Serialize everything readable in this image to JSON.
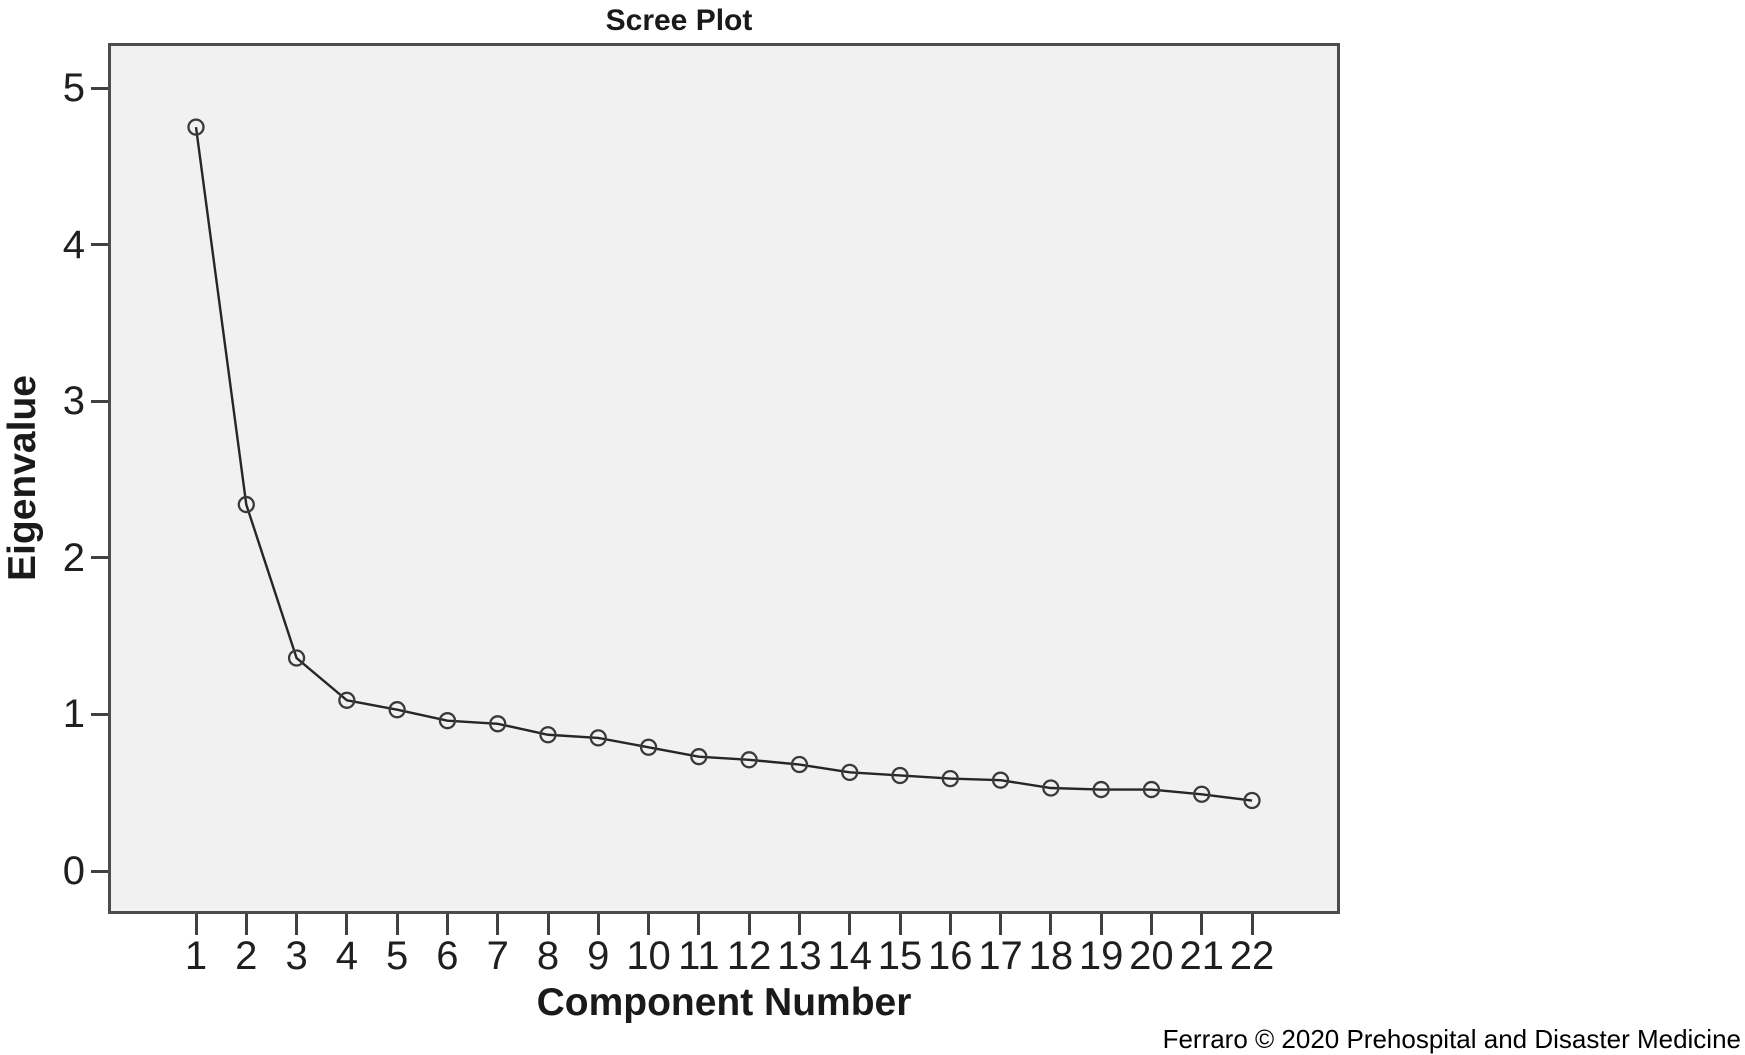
{
  "title": "Scree Plot",
  "attribution": "Ferraro © 2020 Prehospital and Disaster Medicine",
  "chart_data": {
    "type": "line",
    "title": "Scree Plot",
    "xlabel": "Component Number",
    "ylabel": "Eigenvalue",
    "x": [
      1,
      2,
      3,
      4,
      5,
      6,
      7,
      8,
      9,
      10,
      11,
      12,
      13,
      14,
      15,
      16,
      17,
      18,
      19,
      20,
      21,
      22
    ],
    "values": [
      4.75,
      2.34,
      1.36,
      1.09,
      1.03,
      0.96,
      0.94,
      0.87,
      0.85,
      0.79,
      0.73,
      0.71,
      0.68,
      0.63,
      0.61,
      0.59,
      0.58,
      0.53,
      0.52,
      0.52,
      0.49,
      0.45
    ],
    "yticks": [
      0,
      1,
      2,
      3,
      4,
      5
    ],
    "ylim": [
      -0.27,
      5.29
    ],
    "xlim_inset_points": true,
    "grid": false,
    "legend": "none",
    "marker": "open-circle",
    "colors": {
      "plot_background": "#f1f1f1",
      "frame": "#4c4c4c",
      "line": "#262626",
      "marker_stroke": "#3a3a3a",
      "tick": "#404040",
      "text": "#1a1a1a"
    }
  }
}
